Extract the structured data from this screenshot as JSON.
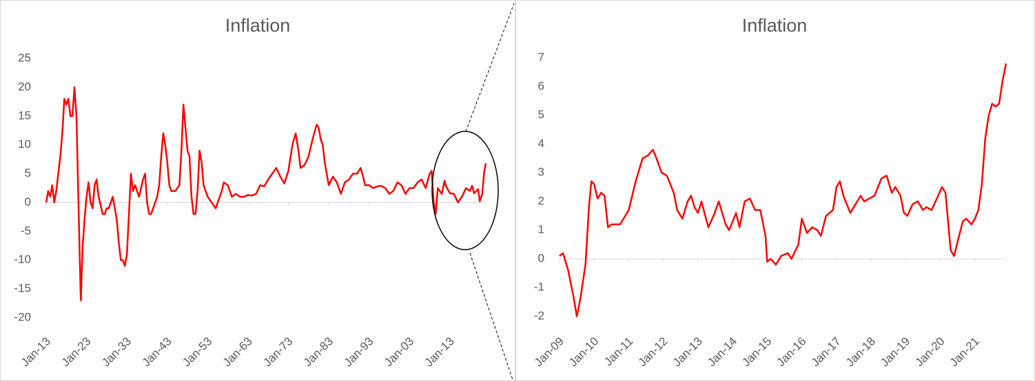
{
  "chart_data": [
    {
      "type": "line",
      "title": "Inflation",
      "color": "#ff0000",
      "x": [
        1913,
        1913.5,
        1914,
        1914.5,
        1915,
        1915.5,
        1916,
        1916.5,
        1917,
        1917.5,
        1918,
        1918.5,
        1919,
        1919.5,
        1920,
        1920.5,
        1921,
        1921.5,
        1921.6,
        1922,
        1922.5,
        1923,
        1923.5,
        1924,
        1924.5,
        1925,
        1925.5,
        1926,
        1927,
        1927.5,
        1928,
        1928.5,
        1929,
        1929.5,
        1930,
        1930.5,
        1931,
        1931.5,
        1932,
        1932.5,
        1933,
        1933.5,
        1934,
        1934.5,
        1935,
        1936,
        1937,
        1937.5,
        1938,
        1938.5,
        1939,
        1939.5,
        1940,
        1940.5,
        1941,
        1941.5,
        1942,
        1942.5,
        1943,
        1943.5,
        1944,
        1945,
        1946,
        1946.5,
        1947,
        1947.5,
        1948,
        1948.5,
        1949,
        1949.5,
        1950,
        1950.5,
        1951,
        1951.5,
        1952,
        1953,
        1954,
        1955,
        1956,
        1956.5,
        1957,
        1958,
        1959,
        1960,
        1961,
        1962,
        1963,
        1964,
        1965,
        1966,
        1967,
        1968,
        1969,
        1970,
        1971,
        1972,
        1973,
        1974,
        1974.8,
        1975.5,
        1976,
        1977,
        1978,
        1979,
        1980,
        1980.5,
        1981,
        1981.5,
        1982,
        1983,
        1984,
        1985,
        1986,
        1987,
        1988,
        1989,
        1990,
        1990.9,
        1991.5,
        1992,
        1993,
        1994,
        1995,
        1996,
        1997,
        1998,
        1999,
        2000,
        2001,
        2002,
        2003,
        2004,
        2005,
        2006,
        2007,
        2008,
        2008.5,
        2009,
        2009.5,
        2010,
        2011,
        2011.7,
        2012,
        2013,
        2014,
        2015,
        2016,
        2017,
        2018,
        2018.5,
        2019,
        2020,
        2020.4,
        2021,
        2021.5,
        2021.9
      ],
      "values": [
        0,
        2,
        1,
        3,
        0,
        2,
        5,
        8,
        12,
        18,
        17,
        18,
        15,
        15,
        20,
        15,
        0,
        -15,
        -17,
        -8,
        -3,
        1,
        3.5,
        0,
        -1,
        3,
        4,
        1,
        -2,
        -2,
        -1,
        -1,
        0,
        1,
        -1,
        -3,
        -7,
        -10,
        -10,
        -11,
        -9,
        -2,
        5,
        2,
        3,
        1,
        4,
        5,
        0,
        -2,
        -2,
        -1,
        0,
        1,
        3,
        8,
        12,
        10,
        7,
        3,
        2,
        2,
        3,
        9,
        17,
        13,
        9,
        8,
        1,
        -2,
        -2,
        2,
        9,
        7,
        3,
        1,
        0,
        -1,
        1,
        2,
        3.5,
        3,
        1,
        1.5,
        1,
        1,
        1.3,
        1.2,
        1.5,
        3,
        2.8,
        4,
        5,
        6,
        4.5,
        3.3,
        5.5,
        10,
        12,
        9,
        6,
        6.5,
        8,
        11,
        13.5,
        13,
        11,
        10,
        7,
        3,
        4.5,
        3.5,
        1.5,
        3.5,
        4,
        5,
        5,
        6,
        4.5,
        3,
        3,
        2.5,
        2.8,
        2.9,
        2.5,
        1.5,
        2,
        3.5,
        3,
        1.5,
        2.5,
        2.5,
        3.5,
        4,
        2.5,
        5,
        5.5,
        0,
        -2,
        2.5,
        1.5,
        3.8,
        2.9,
        1.6,
        1.5,
        0,
        1,
        2.5,
        2,
        2.9,
        1.6,
        2.3,
        0.2,
        1.4,
        5.3,
        6.8
      ],
      "xlim": [
        1913,
        2021.9
      ],
      "xticks": [
        {
          "value": 1913,
          "label": "Jan-13"
        },
        {
          "value": 1923,
          "label": "Jan-23"
        },
        {
          "value": 1933,
          "label": "Jan-33"
        },
        {
          "value": 1943,
          "label": "Jan-43"
        },
        {
          "value": 1953,
          "label": "Jan-53"
        },
        {
          "value": 1963,
          "label": "Jan-63"
        },
        {
          "value": 1973,
          "label": "Jan-73"
        },
        {
          "value": 1983,
          "label": "Jan-83"
        },
        {
          "value": 1993,
          "label": "Jan-93"
        },
        {
          "value": 2003,
          "label": "Jan-03"
        },
        {
          "value": 2013,
          "label": "Jan-13"
        }
      ],
      "ylim": [
        -20,
        25
      ],
      "yticks": [
        -20,
        -15,
        -10,
        -5,
        0,
        5,
        10,
        15,
        20,
        25
      ]
    },
    {
      "type": "line",
      "title": "Inflation",
      "color": "#ff0000",
      "x": [
        2009,
        2009.1,
        2009.25,
        2009.4,
        2009.5,
        2009.6,
        2009.75,
        2009.85,
        2009.92,
        2010,
        2010.1,
        2010.2,
        2010.3,
        2010.4,
        2010.5,
        2010.6,
        2010.75,
        2010.9,
        2011,
        2011.2,
        2011.4,
        2011.55,
        2011.7,
        2011.8,
        2011.95,
        2012.1,
        2012.3,
        2012.4,
        2012.55,
        2012.7,
        2012.8,
        2012.9,
        2013,
        2013.1,
        2013.3,
        2013.45,
        2013.6,
        2013.8,
        2013.9,
        2014.1,
        2014.2,
        2014.35,
        2014.5,
        2014.65,
        2014.8,
        2014.95,
        2015,
        2015.1,
        2015.25,
        2015.4,
        2015.6,
        2015.7,
        2015.9,
        2016,
        2016.15,
        2016.3,
        2016.45,
        2016.55,
        2016.7,
        2016.9,
        2017,
        2017.1,
        2017.2,
        2017.4,
        2017.55,
        2017.7,
        2017.8,
        2017.95,
        2018.1,
        2018.3,
        2018.45,
        2018.6,
        2018.7,
        2018.85,
        2018.95,
        2019.05,
        2019.2,
        2019.35,
        2019.5,
        2019.6,
        2019.75,
        2019.9,
        2020.05,
        2020.15,
        2020.3,
        2020.4,
        2020.5,
        2020.65,
        2020.75,
        2020.9,
        2021,
        2021.1,
        2021.2,
        2021.3,
        2021.4,
        2021.5,
        2021.6,
        2021.7,
        2021.8,
        2021.9
      ],
      "values": [
        0.1,
        0.2,
        -0.4,
        -1.3,
        -2,
        -1.4,
        -0.2,
        1.8,
        2.7,
        2.6,
        2.1,
        2.3,
        2.2,
        1.1,
        1.2,
        1.2,
        1.2,
        1.5,
        1.7,
        2.7,
        3.5,
        3.6,
        3.8,
        3.5,
        3.0,
        2.9,
        2.3,
        1.7,
        1.4,
        2.0,
        2.2,
        1.8,
        1.6,
        2.0,
        1.1,
        1.5,
        2.0,
        1.2,
        1.0,
        1.6,
        1.1,
        2.0,
        2.1,
        1.7,
        1.7,
        0.8,
        -0.1,
        0.0,
        -0.2,
        0.1,
        0.2,
        0.0,
        0.5,
        1.4,
        0.9,
        1.1,
        1.0,
        0.8,
        1.5,
        1.7,
        2.5,
        2.7,
        2.2,
        1.6,
        1.9,
        2.2,
        2.0,
        2.1,
        2.2,
        2.8,
        2.9,
        2.3,
        2.5,
        2.2,
        1.6,
        1.5,
        1.9,
        2.0,
        1.7,
        1.8,
        1.7,
        2.1,
        2.5,
        2.3,
        0.3,
        0.1,
        0.6,
        1.3,
        1.4,
        1.2,
        1.4,
        1.7,
        2.6,
        4.2,
        5.0,
        5.4,
        5.3,
        5.4,
        6.2,
        6.8
      ],
      "xlim": [
        2009,
        2021.9
      ],
      "xticks": [
        {
          "value": 2009,
          "label": "Jan-09"
        },
        {
          "value": 2010,
          "label": "Jan-10"
        },
        {
          "value": 2011,
          "label": "Jan-11"
        },
        {
          "value": 2012,
          "label": "Jan-12"
        },
        {
          "value": 2013,
          "label": "Jan-13"
        },
        {
          "value": 2014,
          "label": "Jan-14"
        },
        {
          "value": 2015,
          "label": "Jan-15"
        },
        {
          "value": 2016,
          "label": "Jan-16"
        },
        {
          "value": 2017,
          "label": "Jan-17"
        },
        {
          "value": 2018,
          "label": "Jan-18"
        },
        {
          "value": 2019,
          "label": "Jan-19"
        },
        {
          "value": 2020,
          "label": "Jan-20"
        },
        {
          "value": 2021,
          "label": "Jan-21"
        }
      ],
      "ylim": [
        -2,
        7
      ],
      "yticks": [
        -2,
        -1,
        0,
        1,
        2,
        3,
        4,
        5,
        6,
        7
      ]
    }
  ]
}
